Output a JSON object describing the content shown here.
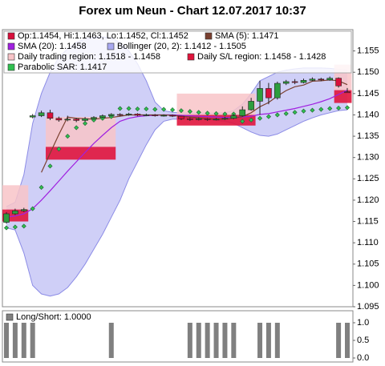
{
  "chart_data": {
    "type": "candlestick",
    "title": "Forex um Neun - Chart 12.07.2017 10:37",
    "ylim": [
      1.095,
      1.16
    ],
    "yticks": [
      1.095,
      {
        "value": 1.1,
        "label": "1.100"
      },
      1.105,
      {
        "value": 1.11,
        "label": "1.110"
      },
      1.115,
      {
        "value": 1.12,
        "label": "1.120"
      },
      1.125,
      {
        "value": 1.13,
        "label": "1.130"
      },
      1.135,
      {
        "value": 1.14,
        "label": "1.140"
      },
      1.145,
      {
        "value": 1.15,
        "label": "1.150"
      },
      1.155
    ],
    "ohlc": {
      "name": "Op:1.1454, Hi:1.1463, Lo:1.1452, Cl:1.1452",
      "up_color": "#2e9e3e",
      "down_color": "#d8103c",
      "open": [
        1.1148,
        1.1168,
        1.1175,
        1.1395,
        1.1398,
        1.1405,
        1.1392,
        1.1388,
        1.139,
        1.1387,
        1.1391,
        1.1394,
        1.1398,
        1.1401,
        1.14,
        1.1402,
        1.1399,
        1.14,
        1.1398,
        1.1399,
        1.1397,
        1.1391,
        1.1389,
        1.1391,
        1.1389,
        1.139,
        1.1392,
        1.1398,
        1.1412,
        1.1432,
        1.1462,
        1.144,
        1.1474,
        1.1478,
        1.1476,
        1.1481,
        1.1484,
        1.1482,
        1.1486,
        1.1454
      ],
      "high": [
        1.1172,
        1.118,
        1.1182,
        1.1402,
        1.141,
        1.1412,
        1.1396,
        1.1398,
        1.1393,
        1.1395,
        1.1397,
        1.1401,
        1.1404,
        1.1404,
        1.1405,
        1.1404,
        1.1403,
        1.1402,
        1.1401,
        1.1401,
        1.1398,
        1.1394,
        1.1394,
        1.1393,
        1.1393,
        1.1395,
        1.1402,
        1.142,
        1.144,
        1.148,
        1.1475,
        1.1478,
        1.1482,
        1.1484,
        1.1485,
        1.1488,
        1.1487,
        1.149,
        1.1488,
        1.1463
      ],
      "low": [
        1.1145,
        1.1165,
        1.1172,
        1.1392,
        1.1395,
        1.1388,
        1.1384,
        1.1385,
        1.1383,
        1.1385,
        1.1389,
        1.1392,
        1.1396,
        1.1397,
        1.1398,
        1.1397,
        1.1397,
        1.1396,
        1.1396,
        1.1395,
        1.1388,
        1.1386,
        1.1387,
        1.1386,
        1.1387,
        1.1388,
        1.139,
        1.1396,
        1.141,
        1.14,
        1.1425,
        1.1436,
        1.147,
        1.1472,
        1.1474,
        1.1479,
        1.1479,
        1.148,
        1.1464,
        1.1452
      ],
      "close": [
        1.1168,
        1.1175,
        1.1178,
        1.1398,
        1.1405,
        1.1392,
        1.1388,
        1.139,
        1.1387,
        1.1391,
        1.1394,
        1.1398,
        1.1401,
        1.14,
        1.1402,
        1.1399,
        1.14,
        1.1398,
        1.1399,
        1.1397,
        1.1391,
        1.1389,
        1.1391,
        1.1389,
        1.139,
        1.1392,
        1.1398,
        1.1412,
        1.1432,
        1.1462,
        1.144,
        1.1474,
        1.1478,
        1.1476,
        1.1481,
        1.1484,
        1.1482,
        1.1486,
        1.1468,
        1.1452
      ]
    },
    "sma5": {
      "name": "SMA (5): 1.1471",
      "color": "#7a4030",
      "values": [
        null,
        null,
        null,
        null,
        1.1265,
        1.131,
        1.1354,
        1.1395,
        1.1392,
        1.1391,
        1.139,
        1.1392,
        1.1394,
        1.1397,
        1.14,
        1.14,
        1.14,
        1.14,
        1.14,
        1.1399,
        1.1397,
        1.1395,
        1.1393,
        1.1391,
        1.139,
        1.139,
        1.1392,
        1.1396,
        1.1405,
        1.1419,
        1.1429,
        1.1444,
        1.1457,
        1.1466,
        1.147,
        1.1479,
        1.148,
        1.1482,
        1.148,
        1.1471
      ]
    },
    "sma20": {
      "name": "SMA (20): 1.1458",
      "color": "#a020e0",
      "values": [
        1.116,
        1.1163,
        1.1168,
        1.118,
        1.12,
        1.1222,
        1.1245,
        1.1268,
        1.129,
        1.1312,
        1.1333,
        1.1352,
        1.137,
        1.1385,
        1.1392,
        1.1396,
        1.1398,
        1.1399,
        1.14,
        1.14,
        1.1399,
        1.1398,
        1.1397,
        1.1396,
        1.1395,
        1.1394,
        1.1394,
        1.1395,
        1.1397,
        1.1401,
        1.1403,
        1.1407,
        1.1411,
        1.1415,
        1.142,
        1.1425,
        1.1431,
        1.1438,
        1.1448,
        1.1458
      ]
    },
    "bollinger": {
      "name": "Bollinger (20, 2): 1.1412 - 1.1505",
      "color": "#a8a8f0",
      "upper": [
        1.1185,
        1.1195,
        1.126,
        1.138,
        1.145,
        1.15,
        1.1535,
        1.1555,
        1.157,
        1.1578,
        1.1582,
        1.1583,
        1.158,
        1.157,
        1.155,
        1.152,
        1.148,
        1.143,
        1.141,
        1.1406,
        1.1405,
        1.1404,
        1.1404,
        1.1404,
        1.1404,
        1.1405,
        1.141,
        1.1425,
        1.145,
        1.148,
        1.149,
        1.15,
        1.1505,
        1.1508,
        1.151,
        1.151,
        1.151,
        1.1509,
        1.1507,
        1.1505
      ],
      "lower": [
        1.1135,
        1.113,
        1.1076,
        1.1,
        1.098,
        1.0975,
        1.098,
        1.0995,
        1.102,
        1.105,
        1.1085,
        1.112,
        1.116,
        1.12,
        1.125,
        1.129,
        1.133,
        1.1365,
        1.1385,
        1.139,
        1.139,
        1.139,
        1.139,
        1.1389,
        1.1387,
        1.1385,
        1.138,
        1.137,
        1.136,
        1.1352,
        1.135,
        1.1355,
        1.1365,
        1.1375,
        1.1385,
        1.1393,
        1.14,
        1.1405,
        1.141,
        1.1412
      ]
    },
    "trading_region": {
      "name": "Daily trading region: 1.1518 - 1.1458",
      "color": "#f8c4c8",
      "regions": [
        {
          "x": [
            0,
            2
          ],
          "high": 1.1235,
          "low": 1.1178
        },
        {
          "x": [
            5,
            12
          ],
          "high": 1.1395,
          "low": 1.1325
        },
        {
          "x": [
            20,
            28
          ],
          "high": 1.145,
          "low": 1.14
        },
        {
          "x": [
            38,
            39
          ],
          "high": 1.1518,
          "low": 1.1458
        }
      ]
    },
    "sl_region": {
      "name": "Daily S/L region: 1.1458 - 1.1428",
      "color": "#e0143c",
      "regions": [
        {
          "x": [
            0,
            2
          ],
          "high": 1.1178,
          "low": 1.115
        },
        {
          "x": [
            5,
            12
          ],
          "high": 1.1325,
          "low": 1.1295
        },
        {
          "x": [
            20,
            28
          ],
          "high": 1.14,
          "low": 1.1375
        },
        {
          "x": [
            38,
            39
          ],
          "high": 1.1458,
          "low": 1.1428
        }
      ]
    },
    "sar": {
      "name": "Parabolic SAR: 1.1417",
      "color": "#30c050",
      "values": [
        1.1135,
        1.1137,
        1.1139,
        1.118,
        1.123,
        1.128,
        1.132,
        1.135,
        1.137,
        1.138,
        1.1388,
        1.1392,
        1.1396,
        1.1415,
        1.1415,
        1.1414,
        1.1414,
        1.1413,
        1.1413,
        1.1412,
        1.141,
        1.1408,
        1.1406,
        1.1404,
        1.1403,
        1.1402,
        1.1402,
        1.1385,
        1.1388,
        1.1392,
        1.1396,
        1.14,
        1.1403,
        1.1406,
        1.1409,
        1.1411,
        1.1413,
        1.1415,
        1.1416,
        1.1417
      ]
    },
    "long_short": {
      "title": "Long/Short: 1.0000",
      "color": "#808080",
      "ylim": [
        0,
        1
      ],
      "yticks": [
        {
          "value": 0,
          "label": "0.0"
        },
        0.5,
        {
          "value": 1,
          "label": "1.0"
        }
      ],
      "values": [
        1,
        1,
        1,
        1,
        0,
        0,
        0,
        0,
        0,
        0,
        0,
        0,
        1,
        0,
        0,
        0,
        0,
        0,
        0,
        0,
        0,
        1,
        1,
        1,
        1,
        1,
        1,
        0,
        0,
        1,
        1,
        1,
        0,
        0,
        0,
        0,
        0,
        0,
        1,
        1
      ]
    }
  }
}
